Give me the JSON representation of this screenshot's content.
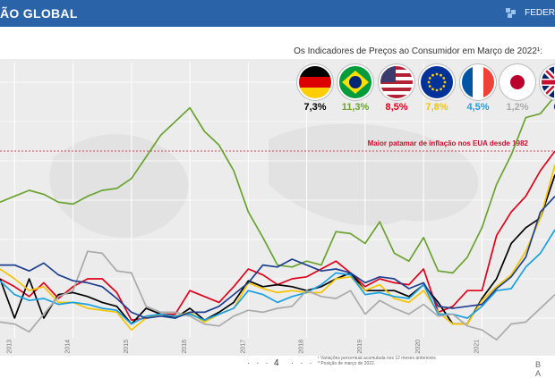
{
  "header": {
    "title": "ÃO GLOBAL",
    "brand": "FEDER",
    "accent": "#2b63a8"
  },
  "subtitle": "Os Indicadores de Preços ao Consumidor em Março de 2022¹:",
  "flags": [
    {
      "country": "Germany",
      "value": "7,3%",
      "color": "#000000"
    },
    {
      "country": "Brazil",
      "value": "11,3%",
      "color": "#6aa32f"
    },
    {
      "country": "USA",
      "value": "8,5%",
      "color": "#e0001a"
    },
    {
      "country": "Euro Area",
      "value": "7,8%",
      "color": "#f5c400"
    },
    {
      "country": "France",
      "value": "4,5%",
      "color": "#1aa0e0"
    },
    {
      "country": "Japan",
      "value": "1,2%",
      "color": "#aaaaaa"
    },
    {
      "country": "UK",
      "value": "6,",
      "color": "#1f3f8f"
    }
  ],
  "annotation": "Maior patamar de inflação nos EUA desde 1982",
  "footer": {
    "dots_left": "· · ·",
    "page": "4",
    "dots_right": "· · ·",
    "note1": "¹ Variações percentual acumulada nos 12 meses anteriores.",
    "note2": "* Posição de março de 2022.",
    "bank": "B A"
  },
  "chart_data": {
    "type": "line",
    "x_tick_labels": [
      "2013",
      "2014",
      "2015",
      "2016",
      "2017",
      "2018",
      "2019",
      "2020",
      "2021"
    ],
    "xlim": [
      2012.75,
      2022.25
    ],
    "ylim": [
      -1,
      13
    ],
    "grid": true,
    "annotation_line_y": 8.5,
    "series": [
      {
        "name": "Brazil",
        "color": "#6aa32f",
        "x": [
          2012.75,
          2013.0,
          2013.25,
          2013.5,
          2013.75,
          2014.0,
          2014.25,
          2014.5,
          2014.75,
          2015.0,
          2015.25,
          2015.5,
          2015.75,
          2016.0,
          2016.25,
          2016.5,
          2016.75,
          2017.0,
          2017.25,
          2017.5,
          2017.75,
          2018.0,
          2018.25,
          2018.5,
          2018.75,
          2019.0,
          2019.25,
          2019.5,
          2019.75,
          2020.0,
          2020.25,
          2020.5,
          2020.75,
          2021.0,
          2021.25,
          2021.5,
          2021.75,
          2022.0,
          2022.25
        ],
        "y": [
          5.9,
          6.2,
          6.5,
          6.3,
          5.9,
          5.8,
          6.2,
          6.5,
          6.6,
          7.1,
          8.2,
          9.3,
          10.0,
          10.7,
          9.5,
          8.8,
          7.5,
          5.4,
          4.1,
          2.7,
          2.6,
          2.9,
          2.7,
          4.4,
          4.3,
          3.8,
          4.9,
          3.3,
          2.9,
          4.1,
          2.4,
          2.3,
          3.1,
          4.6,
          6.8,
          8.3,
          10.2,
          10.4,
          11.3
        ]
      },
      {
        "name": "USA",
        "color": "#e0001a",
        "x": [
          2012.75,
          2013.0,
          2013.25,
          2013.5,
          2013.75,
          2014.0,
          2014.25,
          2014.5,
          2014.75,
          2015.0,
          2015.25,
          2015.5,
          2015.75,
          2016.0,
          2016.25,
          2016.5,
          2016.75,
          2017.0,
          2017.25,
          2017.5,
          2017.75,
          2018.0,
          2018.25,
          2018.5,
          2018.75,
          2019.0,
          2019.25,
          2019.5,
          2019.75,
          2020.0,
          2020.25,
          2020.5,
          2020.75,
          2021.0,
          2021.25,
          2021.5,
          2021.75,
          2022.0,
          2022.25
        ],
        "y": [
          2.0,
          1.6,
          1.1,
          1.8,
          1.0,
          1.6,
          2.0,
          2.0,
          1.3,
          -0.1,
          0.0,
          0.2,
          0.2,
          1.4,
          1.1,
          0.8,
          1.6,
          2.5,
          2.2,
          1.7,
          2.0,
          2.1,
          2.5,
          2.9,
          2.3,
          1.6,
          2.0,
          1.8,
          1.7,
          2.5,
          0.3,
          0.6,
          1.4,
          1.4,
          4.2,
          5.4,
          6.2,
          7.5,
          8.5
        ]
      },
      {
        "name": "Germany",
        "color": "#000000",
        "x": [
          2012.75,
          2013.0,
          2013.25,
          2013.5,
          2013.75,
          2014.0,
          2014.25,
          2014.5,
          2014.75,
          2015.0,
          2015.25,
          2015.5,
          2015.75,
          2016.0,
          2016.25,
          2016.5,
          2016.75,
          2017.0,
          2017.25,
          2017.5,
          2017.75,
          2018.0,
          2018.25,
          2018.5,
          2018.75,
          2019.0,
          2019.25,
          2019.5,
          2019.75,
          2020.0,
          2020.25,
          2020.5,
          2020.75,
          2021.0,
          2021.25,
          2021.5,
          2021.75,
          2022.0,
          2022.25
        ],
        "y": [
          2.0,
          0.0,
          2.0,
          0.0,
          1.2,
          1.3,
          1.1,
          0.8,
          0.6,
          -0.3,
          0.5,
          0.2,
          0.0,
          0.5,
          -0.1,
          0.3,
          0.8,
          1.9,
          1.6,
          1.7,
          1.6,
          1.4,
          1.6,
          2.0,
          2.3,
          1.4,
          1.4,
          1.4,
          1.1,
          1.7,
          0.8,
          -0.3,
          -0.3,
          1.0,
          2.0,
          3.8,
          4.6,
          5.1,
          7.3
        ]
      },
      {
        "name": "Euro Area",
        "color": "#f5c400",
        "x": [
          2012.75,
          2013.0,
          2013.25,
          2013.5,
          2013.75,
          2014.0,
          2014.25,
          2014.5,
          2014.75,
          2015.0,
          2015.25,
          2015.5,
          2015.75,
          2016.0,
          2016.25,
          2016.5,
          2016.75,
          2017.0,
          2017.25,
          2017.5,
          2017.75,
          2018.0,
          2018.25,
          2018.5,
          2018.75,
          2019.0,
          2019.25,
          2019.5,
          2019.75,
          2020.0,
          2020.25,
          2020.5,
          2020.75,
          2021.0,
          2021.25,
          2021.5,
          2021.75,
          2022.0,
          2022.25
        ],
        "y": [
          2.5,
          2.0,
          1.4,
          1.6,
          0.8,
          0.8,
          0.5,
          0.4,
          0.3,
          -0.6,
          0.0,
          0.2,
          0.1,
          0.3,
          -0.2,
          0.2,
          0.5,
          1.8,
          1.5,
          1.3,
          1.4,
          1.3,
          1.3,
          2.0,
          2.1,
          1.4,
          1.7,
          1.0,
          0.8,
          1.4,
          0.3,
          -0.3,
          -0.3,
          0.9,
          1.6,
          2.2,
          3.4,
          5.1,
          7.8
        ]
      },
      {
        "name": "France",
        "color": "#1aa0e0",
        "x": [
          2012.75,
          2013.0,
          2013.25,
          2013.5,
          2013.75,
          2014.0,
          2014.25,
          2014.5,
          2014.75,
          2015.0,
          2015.25,
          2015.5,
          2015.75,
          2016.0,
          2016.25,
          2016.5,
          2016.75,
          2017.0,
          2017.25,
          2017.5,
          2017.75,
          2018.0,
          2018.25,
          2018.5,
          2018.75,
          2019.0,
          2019.25,
          2019.5,
          2019.75,
          2020.0,
          2020.25,
          2020.5,
          2020.75,
          2021.0,
          2021.25,
          2021.5,
          2021.75,
          2022.0,
          2022.25
        ],
        "y": [
          1.9,
          1.2,
          0.9,
          1.0,
          0.7,
          0.8,
          0.7,
          0.5,
          0.4,
          -0.3,
          0.1,
          0.2,
          0.1,
          0.2,
          -0.1,
          0.2,
          0.5,
          1.4,
          1.2,
          0.8,
          1.1,
          1.3,
          1.7,
          2.3,
          2.2,
          1.2,
          1.3,
          1.1,
          1.0,
          1.7,
          0.2,
          0.2,
          0.0,
          0.6,
          1.4,
          1.5,
          2.6,
          3.3,
          4.5
        ]
      },
      {
        "name": "Japan",
        "color": "#aaaaaa",
        "x": [
          2012.75,
          2013.0,
          2013.25,
          2013.5,
          2013.75,
          2014.0,
          2014.25,
          2014.5,
          2014.75,
          2015.0,
          2015.25,
          2015.5,
          2015.75,
          2016.0,
          2016.25,
          2016.5,
          2016.75,
          2017.0,
          2017.25,
          2017.5,
          2017.75,
          2018.0,
          2018.25,
          2018.5,
          2018.75,
          2019.0,
          2019.25,
          2019.5,
          2019.75,
          2020.0,
          2020.25,
          2020.5,
          2020.75,
          2021.0,
          2021.25,
          2021.5,
          2021.75,
          2022.0,
          2022.25
        ],
        "y": [
          -0.2,
          -0.3,
          -0.7,
          0.2,
          1.1,
          1.4,
          3.4,
          3.3,
          2.4,
          2.3,
          0.6,
          0.3,
          0.3,
          0.1,
          -0.3,
          -0.4,
          0.1,
          0.4,
          0.3,
          0.5,
          0.6,
          1.4,
          1.1,
          1.0,
          1.4,
          0.2,
          0.9,
          0.5,
          0.2,
          0.7,
          0.1,
          0.2,
          -0.4,
          -0.6,
          -1.1,
          -0.3,
          -0.2,
          0.5,
          1.2
        ]
      },
      {
        "name": "UK",
        "color": "#1f3f8f",
        "x": [
          2012.75,
          2013.0,
          2013.25,
          2013.5,
          2013.75,
          2014.0,
          2014.25,
          2014.5,
          2014.75,
          2015.0,
          2015.25,
          2015.5,
          2015.75,
          2016.0,
          2016.25,
          2016.5,
          2016.75,
          2017.0,
          2017.25,
          2017.5,
          2017.75,
          2018.0,
          2018.25,
          2018.5,
          2018.75,
          2019.0,
          2019.25,
          2019.5,
          2019.75,
          2020.0,
          2020.25,
          2020.5,
          2020.75,
          2021.0,
          2021.25,
          2021.5,
          2021.75,
          2022.0,
          2022.25
        ],
        "y": [
          2.7,
          2.7,
          2.4,
          2.8,
          2.2,
          1.9,
          1.8,
          1.6,
          1.0,
          0.3,
          0.0,
          0.1,
          0.0,
          0.3,
          0.3,
          0.6,
          1.2,
          1.8,
          2.7,
          2.6,
          3.0,
          2.7,
          2.4,
          2.5,
          2.3,
          1.8,
          2.1,
          2.0,
          1.5,
          1.8,
          0.6,
          0.5,
          0.6,
          0.7,
          1.5,
          2.1,
          3.1,
          5.4,
          6.2
        ]
      }
    ]
  }
}
